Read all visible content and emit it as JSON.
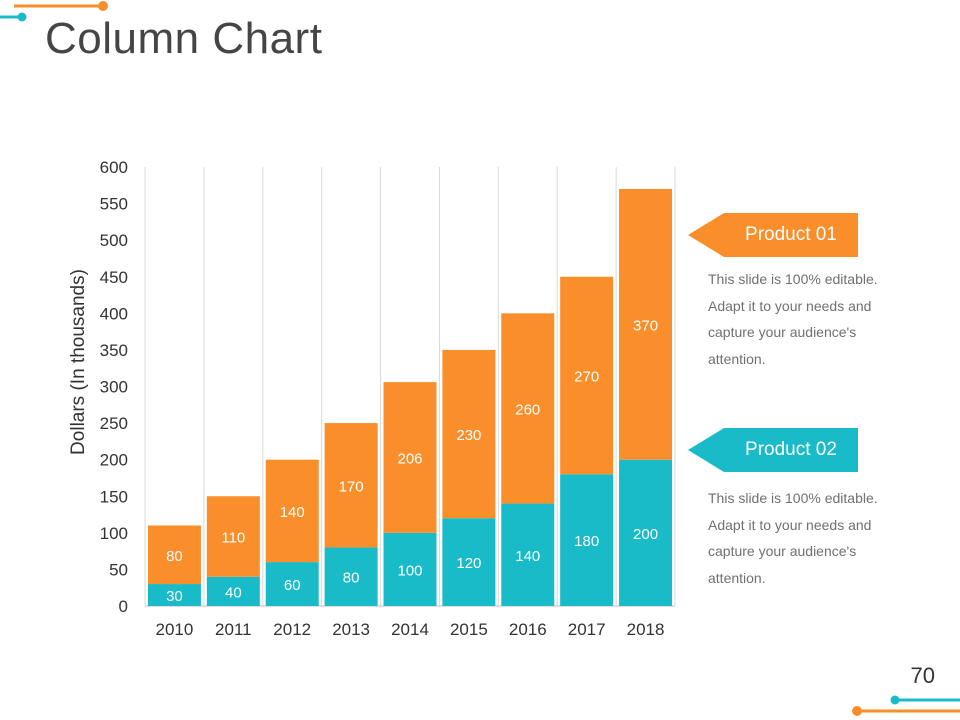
{
  "slide": {
    "title": "Column Chart",
    "page_number": "70"
  },
  "colors": {
    "orange": "#F98E2B",
    "teal": "#1ABBC8",
    "axis_text": "#333333",
    "grid": "#d9d9d9"
  },
  "callouts": [
    {
      "label": "Product 01",
      "color": "#F98E2B",
      "lines": [
        "This slide is 100% editable.",
        "Adapt it to your needs and",
        "capture your audience's",
        "attention."
      ]
    },
    {
      "label": "Product 02",
      "color": "#1ABBC8",
      "lines": [
        "This slide is 100% editable.",
        "Adapt it to your needs and",
        "capture your audience's",
        "attention."
      ]
    }
  ],
  "chart_data": {
    "type": "bar",
    "stacked": true,
    "title": "",
    "xlabel": "",
    "ylabel": "Dollars (In thousands)",
    "ylim": [
      0,
      600
    ],
    "yticks": [
      0,
      50,
      100,
      150,
      200,
      250,
      300,
      350,
      400,
      450,
      500,
      550,
      600
    ],
    "categories": [
      "2010",
      "2011",
      "2012",
      "2013",
      "2014",
      "2015",
      "2016",
      "2017",
      "2018"
    ],
    "series": [
      {
        "name": "Product 02",
        "color": "#1ABBC8",
        "values": [
          30,
          40,
          60,
          80,
          100,
          120,
          140,
          180,
          200
        ]
      },
      {
        "name": "Product 01",
        "color": "#F98E2B",
        "values": [
          80,
          110,
          140,
          170,
          206,
          230,
          260,
          270,
          370
        ]
      }
    ],
    "segment_totals": [
      110,
      150,
      200,
      250,
      306,
      350,
      400,
      450,
      570
    ]
  }
}
